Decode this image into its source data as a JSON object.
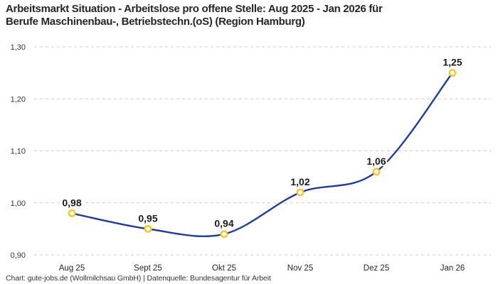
{
  "header": {
    "title_line1": "Arbeitsmarkt Situation - Arbeitslose pro offene Stelle: Aug 2025 - Jan 2026 für",
    "title_line2": "Berufe Maschinenbau-, Betriebstechn.(oS) (Region Hamburg)"
  },
  "footer": {
    "credit": "Chart: gute-jobs.de (Wollmilchsau GmbH) | Datenquelle: Bundesagentur für Arbeit"
  },
  "colors": {
    "line": "#1F3D99",
    "marker_ring": "#FFC424",
    "marker_fill": "#FFFFFF",
    "grid": "#CCCCCC",
    "title_text": "#262626",
    "axis_text": "#333333",
    "point_label_text": "#1A1A1A"
  },
  "chart_data": {
    "type": "line",
    "title": "Arbeitsmarkt Situation - Arbeitslose pro offene Stelle: Aug 2025 - Jan 2026 für Berufe Maschinenbau-, Betriebstechn.(oS) (Region Hamburg)",
    "categories": [
      "Aug 25",
      "Sept 25",
      "Okt 25",
      "Nov 25",
      "Dez 25",
      "Jan 26"
    ],
    "values": [
      0.98,
      0.95,
      0.94,
      1.02,
      1.06,
      1.25
    ],
    "point_labels": [
      "0,98",
      "0,95",
      "0,94",
      "1,02",
      "1,06",
      "1,25"
    ],
    "xlabel": "",
    "ylabel": "",
    "ylim": [
      0.9,
      1.3
    ],
    "yticks": [
      0.9,
      1.0,
      1.1,
      1.2,
      1.3
    ],
    "ytick_labels": [
      "0,90",
      "1,00",
      "1,10",
      "1,20",
      "1,30"
    ],
    "grid": "horizontal-dashed",
    "legend": "none",
    "line_smoothing": "spline"
  }
}
